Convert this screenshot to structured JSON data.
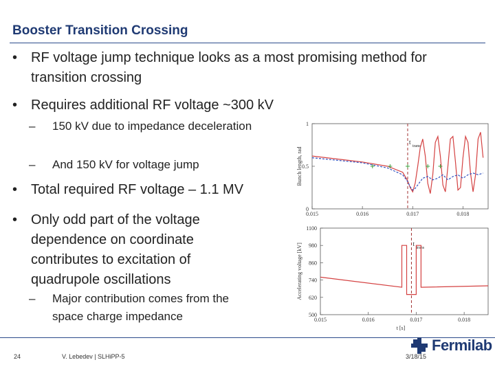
{
  "title": "Booster Transition Crossing",
  "bullets": [
    "RF voltage jump technique looks as a most promising method for transition crossing",
    "Requires additional RF voltage ~300 kV",
    "Total required RF voltage – 1.1 MV",
    "Only odd part of the voltage dependence on coordinate contributes to excitation of quadrupole oscillations"
  ],
  "sub_bullets": [
    "150 kV due to impedance deceleration",
    "And 150 kV for voltage jump",
    "Major contribution comes from the space charge impedance"
  ],
  "bullet_char": "•",
  "dash_char": "–",
  "footer": {
    "page": "24",
    "author": "V. Lebedev | SLHiPP-5",
    "date": "3/18/15"
  },
  "logo": {
    "text": "Fermilab",
    "color": "#1f3a73"
  },
  "chart_data": [
    {
      "type": "line",
      "ylabel": "Bunch length, rad",
      "y_ticks": [
        "1",
        "0.5",
        "0"
      ],
      "x_ticks": [
        "0.015",
        "0.016",
        "0.017",
        "0.018"
      ],
      "xlim": [
        0.015,
        0.0185
      ],
      "ylim": [
        0,
        1
      ],
      "marker_label": "t",
      "marker_subscript": "trans",
      "transition_x": 0.0169,
      "series": [
        {
          "color": "#d44040",
          "style": "solid",
          "x": [
            0.015,
            0.016,
            0.0165,
            0.0168,
            0.0169,
            0.01695,
            0.017,
            0.01705,
            0.0171,
            0.01715,
            0.0172,
            0.01725,
            0.0173,
            0.01735,
            0.0174,
            0.01745,
            0.0175,
            0.01755,
            0.0176,
            0.01765,
            0.0177,
            0.01775,
            0.0178,
            0.01785,
            0.0179,
            0.01795,
            0.018,
            0.01805,
            0.0181,
            0.01815,
            0.0182,
            0.01825,
            0.0183,
            0.01835,
            0.0184
          ],
          "values": [
            0.62,
            0.55,
            0.5,
            0.43,
            0.33,
            0.25,
            0.2,
            0.3,
            0.5,
            0.72,
            0.82,
            0.62,
            0.3,
            0.18,
            0.4,
            0.78,
            0.85,
            0.62,
            0.28,
            0.2,
            0.5,
            0.82,
            0.85,
            0.55,
            0.22,
            0.25,
            0.6,
            0.85,
            0.78,
            0.42,
            0.2,
            0.4,
            0.82,
            0.9,
            0.6
          ]
        },
        {
          "color": "#3050c0",
          "style": "dashed",
          "x": [
            0.015,
            0.016,
            0.0165,
            0.0168,
            0.0169,
            0.01695,
            0.017,
            0.01705,
            0.0171,
            0.0172,
            0.0173,
            0.0174,
            0.0175,
            0.0176,
            0.0177,
            0.0178,
            0.0179,
            0.018,
            0.0181,
            0.0182,
            0.0183,
            0.0184
          ],
          "values": [
            0.6,
            0.54,
            0.48,
            0.4,
            0.32,
            0.26,
            0.22,
            0.24,
            0.28,
            0.36,
            0.38,
            0.34,
            0.36,
            0.4,
            0.34,
            0.38,
            0.4,
            0.36,
            0.4,
            0.42,
            0.4,
            0.42
          ]
        },
        {
          "color": "#40a040",
          "style": "markers",
          "x": [
            0.0162,
            0.01655,
            0.0169,
            0.0173,
            0.01755
          ],
          "values": [
            0.5,
            0.5,
            0.5,
            0.5,
            0.5
          ]
        }
      ]
    },
    {
      "type": "line",
      "ylabel": "Accelerating voltage [kV]",
      "xlabel": "t [s]",
      "y_ticks": [
        "1100",
        "980",
        "860",
        "740",
        "620",
        "500"
      ],
      "x_ticks": [
        "0.015",
        "0.016",
        "0.017",
        "0.018"
      ],
      "xlim": [
        0.015,
        0.0185
      ],
      "ylim": [
        500,
        1100
      ],
      "marker_label": "t",
      "marker_subscript": "trans",
      "transition_x": 0.0169,
      "series": [
        {
          "color": "#d44040",
          "style": "solid",
          "x": [
            0.015,
            0.0167,
            0.0167,
            0.0168,
            0.0168,
            0.017,
            0.017,
            0.0171,
            0.0171,
            0.0185
          ],
          "values": [
            760,
            690,
            980,
            980,
            640,
            640,
            980,
            980,
            690,
            700
          ]
        }
      ]
    }
  ]
}
